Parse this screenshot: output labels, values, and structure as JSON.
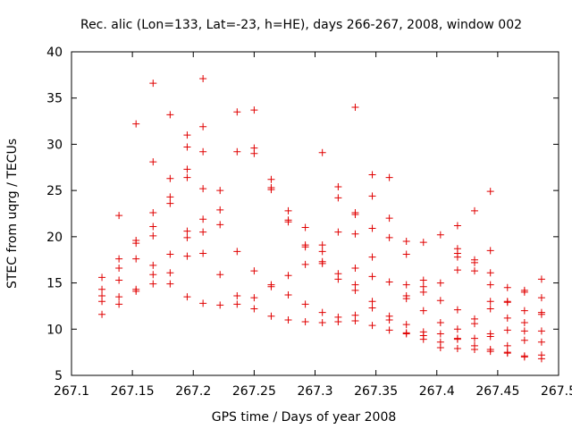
{
  "chart_data": {
    "type": "scatter",
    "title": "Rec. alic (Lon=133, Lat=-23, h=HE), days 266-267, 2008, window 002",
    "xlabel": "GPS time / Days of year 2008",
    "ylabel": "STEC from uqrg / TECUs",
    "xlim": [
      267.1,
      267.5
    ],
    "ylim": [
      5,
      40
    ],
    "xticks": [
      "267.1",
      "267.15",
      "267.2",
      "267.25",
      "267.3",
      "267.35",
      "267.4",
      "267.45",
      "267.5"
    ],
    "yticks": [
      "5",
      "10",
      "15",
      "20",
      "25",
      "30",
      "35",
      "40"
    ],
    "grid": false,
    "marker": "+",
    "color": "#e00000",
    "points": [
      [
        267.125,
        15.6
      ],
      [
        267.125,
        14.3
      ],
      [
        267.125,
        13.6
      ],
      [
        267.125,
        13.0
      ],
      [
        267.125,
        11.6
      ],
      [
        267.139,
        22.3
      ],
      [
        267.139,
        17.6
      ],
      [
        267.139,
        16.6
      ],
      [
        267.139,
        15.3
      ],
      [
        267.139,
        13.5
      ],
      [
        267.139,
        12.7
      ],
      [
        267.153,
        32.2
      ],
      [
        267.153,
        19.6
      ],
      [
        267.153,
        19.3
      ],
      [
        267.153,
        17.6
      ],
      [
        267.153,
        14.3
      ],
      [
        267.153,
        14.1
      ],
      [
        267.167,
        36.6
      ],
      [
        267.167,
        28.1
      ],
      [
        267.167,
        22.6
      ],
      [
        267.167,
        21.1
      ],
      [
        267.167,
        20.1
      ],
      [
        267.167,
        16.9
      ],
      [
        267.167,
        15.9
      ],
      [
        267.167,
        14.9
      ],
      [
        267.181,
        33.2
      ],
      [
        267.181,
        26.3
      ],
      [
        267.181,
        24.3
      ],
      [
        267.181,
        23.6
      ],
      [
        267.181,
        18.1
      ],
      [
        267.181,
        16.1
      ],
      [
        267.181,
        14.9
      ],
      [
        267.195,
        31.0
      ],
      [
        267.195,
        29.7
      ],
      [
        267.195,
        27.3
      ],
      [
        267.195,
        26.4
      ],
      [
        267.195,
        20.6
      ],
      [
        267.195,
        19.9
      ],
      [
        267.195,
        17.9
      ],
      [
        267.195,
        13.5
      ],
      [
        267.208,
        37.1
      ],
      [
        267.208,
        31.9
      ],
      [
        267.208,
        29.2
      ],
      [
        267.208,
        25.2
      ],
      [
        267.208,
        21.9
      ],
      [
        267.208,
        20.5
      ],
      [
        267.208,
        18.2
      ],
      [
        267.208,
        12.8
      ],
      [
        267.222,
        25.0
      ],
      [
        267.222,
        22.9
      ],
      [
        267.222,
        21.3
      ],
      [
        267.222,
        15.9
      ],
      [
        267.222,
        12.6
      ],
      [
        267.236,
        33.5
      ],
      [
        267.236,
        29.2
      ],
      [
        267.236,
        18.4
      ],
      [
        267.236,
        13.6
      ],
      [
        267.236,
        12.7
      ],
      [
        267.25,
        33.7
      ],
      [
        267.25,
        29.6
      ],
      [
        267.25,
        29.0
      ],
      [
        267.25,
        16.3
      ],
      [
        267.25,
        13.4
      ],
      [
        267.25,
        12.2
      ],
      [
        267.264,
        26.2
      ],
      [
        267.264,
        25.3
      ],
      [
        267.264,
        25.1
      ],
      [
        267.264,
        14.8
      ],
      [
        267.264,
        14.6
      ],
      [
        267.264,
        11.4
      ],
      [
        267.278,
        22.8
      ],
      [
        267.278,
        21.8
      ],
      [
        267.278,
        21.6
      ],
      [
        267.278,
        15.8
      ],
      [
        267.278,
        13.7
      ],
      [
        267.278,
        11.0
      ],
      [
        267.292,
        21.0
      ],
      [
        267.292,
        19.1
      ],
      [
        267.292,
        18.9
      ],
      [
        267.292,
        17.0
      ],
      [
        267.292,
        12.7
      ],
      [
        267.292,
        10.8
      ],
      [
        267.306,
        29.1
      ],
      [
        267.306,
        19.1
      ],
      [
        267.306,
        18.4
      ],
      [
        267.306,
        17.3
      ],
      [
        267.306,
        17.1
      ],
      [
        267.306,
        11.8
      ],
      [
        267.306,
        10.7
      ],
      [
        267.319,
        25.4
      ],
      [
        267.319,
        24.2
      ],
      [
        267.319,
        20.5
      ],
      [
        267.319,
        16.0
      ],
      [
        267.319,
        15.4
      ],
      [
        267.319,
        11.3
      ],
      [
        267.319,
        10.8
      ],
      [
        267.333,
        34.0
      ],
      [
        267.333,
        22.6
      ],
      [
        267.333,
        22.4
      ],
      [
        267.333,
        20.3
      ],
      [
        267.333,
        16.6
      ],
      [
        267.333,
        14.8
      ],
      [
        267.333,
        14.2
      ],
      [
        267.333,
        11.5
      ],
      [
        267.333,
        10.9
      ],
      [
        267.347,
        26.7
      ],
      [
        267.347,
        24.4
      ],
      [
        267.347,
        20.9
      ],
      [
        267.347,
        17.8
      ],
      [
        267.347,
        15.7
      ],
      [
        267.347,
        13.0
      ],
      [
        267.347,
        12.3
      ],
      [
        267.347,
        10.4
      ],
      [
        267.361,
        26.4
      ],
      [
        267.361,
        22.0
      ],
      [
        267.361,
        19.9
      ],
      [
        267.361,
        15.1
      ],
      [
        267.361,
        11.4
      ],
      [
        267.361,
        11.0
      ],
      [
        267.361,
        9.9
      ],
      [
        267.375,
        19.5
      ],
      [
        267.375,
        18.1
      ],
      [
        267.375,
        14.8
      ],
      [
        267.375,
        13.6
      ],
      [
        267.375,
        13.3
      ],
      [
        267.375,
        10.5
      ],
      [
        267.375,
        9.6
      ],
      [
        267.375,
        9.5
      ],
      [
        267.389,
        19.4
      ],
      [
        267.389,
        15.3
      ],
      [
        267.389,
        14.6
      ],
      [
        267.389,
        14.0
      ],
      [
        267.389,
        12.0
      ],
      [
        267.389,
        9.7
      ],
      [
        267.389,
        9.3
      ],
      [
        267.389,
        8.9
      ],
      [
        267.403,
        20.2
      ],
      [
        267.403,
        15.0
      ],
      [
        267.403,
        13.1
      ],
      [
        267.403,
        10.7
      ],
      [
        267.403,
        9.5
      ],
      [
        267.403,
        8.6
      ],
      [
        267.403,
        8.0
      ],
      [
        267.417,
        21.2
      ],
      [
        267.417,
        18.7
      ],
      [
        267.417,
        18.2
      ],
      [
        267.417,
        17.8
      ],
      [
        267.417,
        16.4
      ],
      [
        267.417,
        12.1
      ],
      [
        267.417,
        10.0
      ],
      [
        267.417,
        9.0
      ],
      [
        267.417,
        8.9
      ],
      [
        267.417,
        7.9
      ],
      [
        267.431,
        22.8
      ],
      [
        267.431,
        17.5
      ],
      [
        267.431,
        17.2
      ],
      [
        267.431,
        16.3
      ],
      [
        267.431,
        11.1
      ],
      [
        267.431,
        10.6
      ],
      [
        267.431,
        9.0
      ],
      [
        267.431,
        8.2
      ],
      [
        267.431,
        7.8
      ],
      [
        267.444,
        24.9
      ],
      [
        267.444,
        18.5
      ],
      [
        267.444,
        16.1
      ],
      [
        267.444,
        14.8
      ],
      [
        267.444,
        13.0
      ],
      [
        267.444,
        12.2
      ],
      [
        267.444,
        9.5
      ],
      [
        267.444,
        9.2
      ],
      [
        267.444,
        7.8
      ],
      [
        267.444,
        7.6
      ],
      [
        267.458,
        14.5
      ],
      [
        267.458,
        13.0
      ],
      [
        267.458,
        12.9
      ],
      [
        267.458,
        11.2
      ],
      [
        267.458,
        9.9
      ],
      [
        267.458,
        8.2
      ],
      [
        267.458,
        7.5
      ],
      [
        267.458,
        7.4
      ],
      [
        267.472,
        14.2
      ],
      [
        267.472,
        14.0
      ],
      [
        267.472,
        12.0
      ],
      [
        267.472,
        10.7
      ],
      [
        267.472,
        9.8
      ],
      [
        267.472,
        8.8
      ],
      [
        267.472,
        7.1
      ],
      [
        267.472,
        7.0
      ],
      [
        267.486,
        15.4
      ],
      [
        267.486,
        13.4
      ],
      [
        267.486,
        11.8
      ],
      [
        267.486,
        11.6
      ],
      [
        267.486,
        9.8
      ],
      [
        267.486,
        8.6
      ],
      [
        267.486,
        7.2
      ],
      [
        267.486,
        6.8
      ]
    ]
  }
}
